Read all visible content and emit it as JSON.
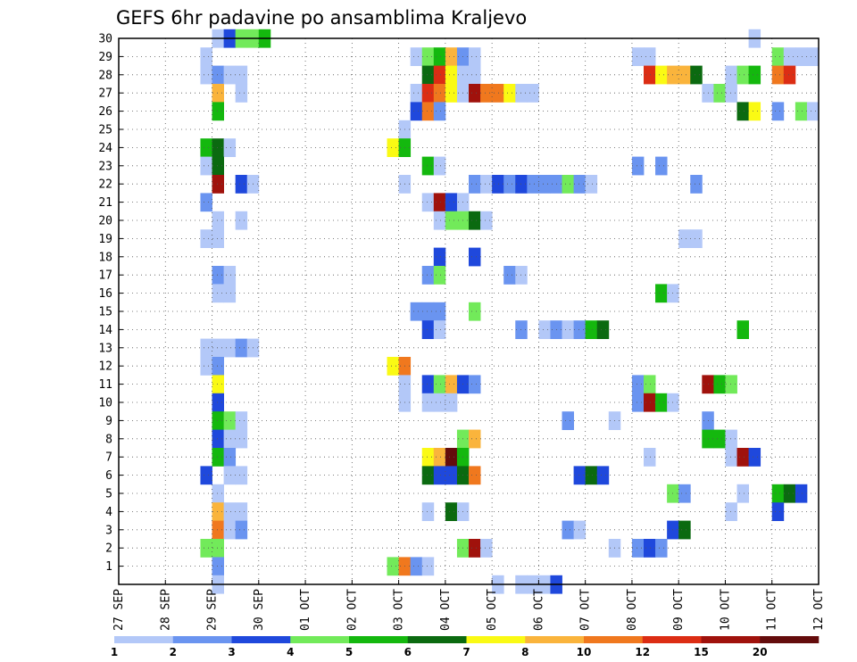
{
  "chart_data": {
    "type": "heatmap",
    "title": "GEFS 6hr padavine po ansamblima Kraljevo",
    "xlabel": "",
    "ylabel": "",
    "x_ticks": [
      "27 SEP",
      "28 SEP",
      "29 SEP",
      "30 SEP",
      "01 OCT",
      "02 OCT",
      "03 OCT",
      "04 OCT",
      "05 OCT",
      "06 OCT",
      "07 OCT",
      "08 OCT",
      "09 OCT",
      "10 OCT",
      "11 OCT",
      "12 OCT"
    ],
    "x_unit": "6-hour steps since 27 SEP 00Z",
    "xlim": [
      0,
      60
    ],
    "y_ticks": [
      1,
      2,
      3,
      4,
      5,
      6,
      7,
      8,
      9,
      10,
      11,
      12,
      13,
      14,
      15,
      16,
      17,
      18,
      19,
      20,
      21,
      22,
      23,
      24,
      25,
      26,
      27,
      28,
      29,
      30
    ],
    "ylim": [
      0,
      30
    ],
    "grid": true,
    "colorbar": {
      "labels": [
        "1",
        "2",
        "3",
        "4",
        "5",
        "6",
        "7",
        "8",
        "10",
        "12",
        "15",
        "20"
      ],
      "colors": [
        "#b3c8f8",
        "#6a94f0",
        "#1f48dc",
        "#72ea5a",
        "#14b80e",
        "#0b6a10",
        "#fafa14",
        "#fab43c",
        "#f0781e",
        "#dc2d14",
        "#a0120c",
        "#640c0c"
      ]
    },
    "cells": [
      [
        8,
        30,
        1
      ],
      [
        9,
        30,
        3
      ],
      [
        10,
        30,
        4
      ],
      [
        11,
        30,
        4
      ],
      [
        12,
        30,
        5
      ],
      [
        54,
        30,
        1
      ],
      [
        7,
        29,
        1
      ],
      [
        25,
        29,
        1
      ],
      [
        26,
        29,
        4
      ],
      [
        27,
        29,
        5
      ],
      [
        28,
        29,
        8
      ],
      [
        29,
        29,
        2
      ],
      [
        30,
        29,
        1
      ],
      [
        44,
        29,
        1
      ],
      [
        45,
        29,
        1
      ],
      [
        56,
        29,
        4
      ],
      [
        57,
        29,
        1
      ],
      [
        58,
        29,
        1
      ],
      [
        59,
        29,
        1
      ],
      [
        7,
        28,
        1
      ],
      [
        8,
        28,
        2
      ],
      [
        9,
        28,
        1
      ],
      [
        10,
        28,
        1
      ],
      [
        26,
        28,
        6
      ],
      [
        27,
        28,
        10
      ],
      [
        28,
        28,
        7
      ],
      [
        29,
        28,
        1
      ],
      [
        30,
        28,
        1
      ],
      [
        45,
        28,
        10
      ],
      [
        46,
        28,
        7
      ],
      [
        47,
        28,
        8
      ],
      [
        48,
        28,
        8
      ],
      [
        49,
        28,
        6
      ],
      [
        52,
        28,
        1
      ],
      [
        53,
        28,
        4
      ],
      [
        54,
        28,
        5
      ],
      [
        56,
        28,
        9
      ],
      [
        57,
        28,
        10
      ],
      [
        8,
        27,
        8
      ],
      [
        10,
        27,
        1
      ],
      [
        25,
        27,
        1
      ],
      [
        26,
        27,
        10
      ],
      [
        27,
        27,
        9
      ],
      [
        28,
        27,
        7
      ],
      [
        29,
        27,
        1
      ],
      [
        30,
        27,
        11
      ],
      [
        31,
        27,
        9
      ],
      [
        32,
        27,
        9
      ],
      [
        33,
        27,
        7
      ],
      [
        34,
        27,
        1
      ],
      [
        35,
        27,
        1
      ],
      [
        50,
        27,
        1
      ],
      [
        51,
        27,
        4
      ],
      [
        52,
        27,
        1
      ],
      [
        8,
        26,
        5
      ],
      [
        25,
        26,
        3
      ],
      [
        26,
        26,
        9
      ],
      [
        27,
        26,
        2
      ],
      [
        53,
        26,
        6
      ],
      [
        54,
        26,
        7
      ],
      [
        56,
        26,
        2
      ],
      [
        58,
        26,
        4
      ],
      [
        59,
        26,
        1
      ],
      [
        24,
        25,
        1
      ],
      [
        7,
        24,
        5
      ],
      [
        8,
        24,
        6
      ],
      [
        9,
        24,
        1
      ],
      [
        23,
        24,
        7
      ],
      [
        24,
        24,
        5
      ],
      [
        7,
        23,
        1
      ],
      [
        8,
        23,
        6
      ],
      [
        26,
        23,
        5
      ],
      [
        27,
        23,
        1
      ],
      [
        44,
        23,
        2
      ],
      [
        46,
        23,
        2
      ],
      [
        8,
        22,
        11
      ],
      [
        10,
        22,
        3
      ],
      [
        11,
        22,
        1
      ],
      [
        24,
        22,
        1
      ],
      [
        30,
        22,
        2
      ],
      [
        31,
        22,
        1
      ],
      [
        32,
        22,
        3
      ],
      [
        33,
        22,
        2
      ],
      [
        34,
        22,
        3
      ],
      [
        35,
        22,
        2
      ],
      [
        36,
        22,
        2
      ],
      [
        37,
        22,
        2
      ],
      [
        38,
        22,
        4
      ],
      [
        39,
        22,
        2
      ],
      [
        40,
        22,
        1
      ],
      [
        49,
        22,
        2
      ],
      [
        7,
        21,
        2
      ],
      [
        26,
        21,
        1
      ],
      [
        27,
        21,
        11
      ],
      [
        28,
        21,
        3
      ],
      [
        29,
        21,
        1
      ],
      [
        8,
        20,
        1
      ],
      [
        10,
        20,
        1
      ],
      [
        27,
        20,
        1
      ],
      [
        28,
        20,
        4
      ],
      [
        29,
        20,
        4
      ],
      [
        30,
        20,
        6
      ],
      [
        31,
        20,
        1
      ],
      [
        7,
        19,
        1
      ],
      [
        8,
        19,
        1
      ],
      [
        48,
        19,
        1
      ],
      [
        49,
        19,
        1
      ],
      [
        27,
        18,
        3
      ],
      [
        30,
        18,
        3
      ],
      [
        8,
        17,
        2
      ],
      [
        9,
        17,
        1
      ],
      [
        26,
        17,
        2
      ],
      [
        27,
        17,
        4
      ],
      [
        33,
        17,
        2
      ],
      [
        34,
        17,
        1
      ],
      [
        8,
        16,
        1
      ],
      [
        9,
        16,
        1
      ],
      [
        46,
        16,
        5
      ],
      [
        47,
        16,
        1
      ],
      [
        25,
        15,
        2
      ],
      [
        26,
        15,
        2
      ],
      [
        27,
        15,
        2
      ],
      [
        30,
        15,
        4
      ],
      [
        26,
        14,
        3
      ],
      [
        27,
        14,
        1
      ],
      [
        34,
        14,
        2
      ],
      [
        36,
        14,
        1
      ],
      [
        37,
        14,
        2
      ],
      [
        38,
        14,
        1
      ],
      [
        39,
        14,
        2
      ],
      [
        40,
        14,
        5
      ],
      [
        41,
        14,
        6
      ],
      [
        53,
        14,
        5
      ],
      [
        7,
        13,
        1
      ],
      [
        8,
        13,
        1
      ],
      [
        9,
        13,
        1
      ],
      [
        10,
        13,
        2
      ],
      [
        11,
        13,
        1
      ],
      [
        7,
        12,
        1
      ],
      [
        8,
        12,
        2
      ],
      [
        23,
        12,
        7
      ],
      [
        24,
        12,
        9
      ],
      [
        8,
        11,
        7
      ],
      [
        24,
        11,
        1
      ],
      [
        26,
        11,
        3
      ],
      [
        27,
        11,
        4
      ],
      [
        28,
        11,
        8
      ],
      [
        29,
        11,
        3
      ],
      [
        30,
        11,
        2
      ],
      [
        44,
        11,
        2
      ],
      [
        45,
        11,
        4
      ],
      [
        50,
        11,
        11
      ],
      [
        51,
        11,
        5
      ],
      [
        52,
        11,
        4
      ],
      [
        8,
        10,
        3
      ],
      [
        24,
        10,
        1
      ],
      [
        26,
        10,
        1
      ],
      [
        27,
        10,
        1
      ],
      [
        28,
        10,
        1
      ],
      [
        44,
        10,
        2
      ],
      [
        45,
        10,
        11
      ],
      [
        46,
        10,
        5
      ],
      [
        47,
        10,
        1
      ],
      [
        8,
        9,
        5
      ],
      [
        9,
        9,
        4
      ],
      [
        10,
        9,
        1
      ],
      [
        38,
        9,
        2
      ],
      [
        42,
        9,
        1
      ],
      [
        50,
        9,
        2
      ],
      [
        8,
        8,
        3
      ],
      [
        9,
        8,
        1
      ],
      [
        10,
        8,
        1
      ],
      [
        29,
        8,
        4
      ],
      [
        30,
        8,
        8
      ],
      [
        50,
        8,
        5
      ],
      [
        51,
        8,
        5
      ],
      [
        52,
        8,
        1
      ],
      [
        8,
        7,
        5
      ],
      [
        9,
        7,
        2
      ],
      [
        26,
        7,
        7
      ],
      [
        27,
        7,
        8
      ],
      [
        28,
        7,
        12
      ],
      [
        29,
        7,
        5
      ],
      [
        45,
        7,
        1
      ],
      [
        52,
        7,
        1
      ],
      [
        53,
        7,
        11
      ],
      [
        54,
        7,
        3
      ],
      [
        7,
        6,
        3
      ],
      [
        9,
        6,
        1
      ],
      [
        10,
        6,
        1
      ],
      [
        26,
        6,
        6
      ],
      [
        27,
        6,
        3
      ],
      [
        28,
        6,
        3
      ],
      [
        29,
        6,
        6
      ],
      [
        30,
        6,
        9
      ],
      [
        39,
        6,
        3
      ],
      [
        40,
        6,
        6
      ],
      [
        41,
        6,
        3
      ],
      [
        8,
        5,
        1
      ],
      [
        47,
        5,
        4
      ],
      [
        48,
        5,
        2
      ],
      [
        53,
        5,
        1
      ],
      [
        56,
        5,
        5
      ],
      [
        57,
        5,
        6
      ],
      [
        58,
        5,
        3
      ],
      [
        8,
        4,
        8
      ],
      [
        9,
        4,
        1
      ],
      [
        10,
        4,
        1
      ],
      [
        26,
        4,
        1
      ],
      [
        28,
        4,
        6
      ],
      [
        29,
        4,
        1
      ],
      [
        52,
        4,
        1
      ],
      [
        56,
        4,
        3
      ],
      [
        8,
        3,
        9
      ],
      [
        9,
        3,
        1
      ],
      [
        10,
        3,
        2
      ],
      [
        38,
        3,
        2
      ],
      [
        39,
        3,
        1
      ],
      [
        47,
        3,
        3
      ],
      [
        48,
        3,
        6
      ],
      [
        7,
        2,
        4
      ],
      [
        8,
        2,
        4
      ],
      [
        29,
        2,
        4
      ],
      [
        30,
        2,
        11
      ],
      [
        31,
        2,
        1
      ],
      [
        42,
        2,
        1
      ],
      [
        44,
        2,
        2
      ],
      [
        45,
        2,
        3
      ],
      [
        46,
        2,
        2
      ],
      [
        8,
        1,
        2
      ],
      [
        23,
        1,
        4
      ],
      [
        24,
        1,
        9
      ],
      [
        25,
        1,
        2
      ],
      [
        26,
        1,
        1
      ],
      [
        8,
        0,
        1
      ],
      [
        32,
        0,
        1
      ],
      [
        34,
        0,
        1
      ],
      [
        35,
        0,
        1
      ],
      [
        36,
        0,
        1
      ],
      [
        37,
        0,
        3
      ]
    ]
  }
}
